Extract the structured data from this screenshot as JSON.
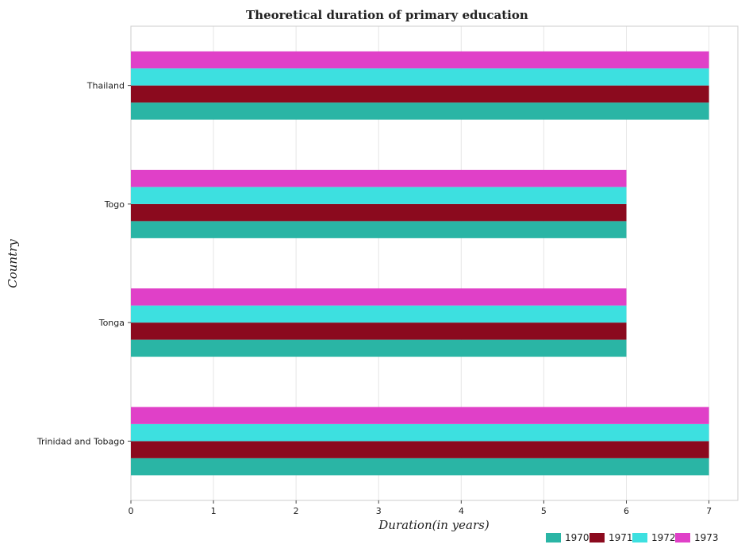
{
  "chart_data": {
    "type": "bar",
    "orientation": "horizontal",
    "title": "Theoretical duration of primary education",
    "xlabel": "Duration(in years)",
    "ylabel": "Country",
    "xlim": [
      0,
      7.35
    ],
    "xticks": [
      0,
      1,
      2,
      3,
      4,
      5,
      6,
      7
    ],
    "categories": [
      "Thailand",
      "Togo",
      "Tonga",
      "Trinidad and Tobago"
    ],
    "series": [
      {
        "name": "1970",
        "color": "#2ab5a5",
        "values": [
          7,
          6,
          6,
          7
        ]
      },
      {
        "name": "1971",
        "color": "#8b0a1e",
        "values": [
          7,
          6,
          6,
          7
        ]
      },
      {
        "name": "1972",
        "color": "#3de0e0",
        "values": [
          7,
          6,
          6,
          7
        ]
      },
      {
        "name": "1973",
        "color": "#e040c8",
        "values": [
          7,
          6,
          6,
          7
        ]
      }
    ],
    "grid": true,
    "legend_position": "bottom-right"
  }
}
